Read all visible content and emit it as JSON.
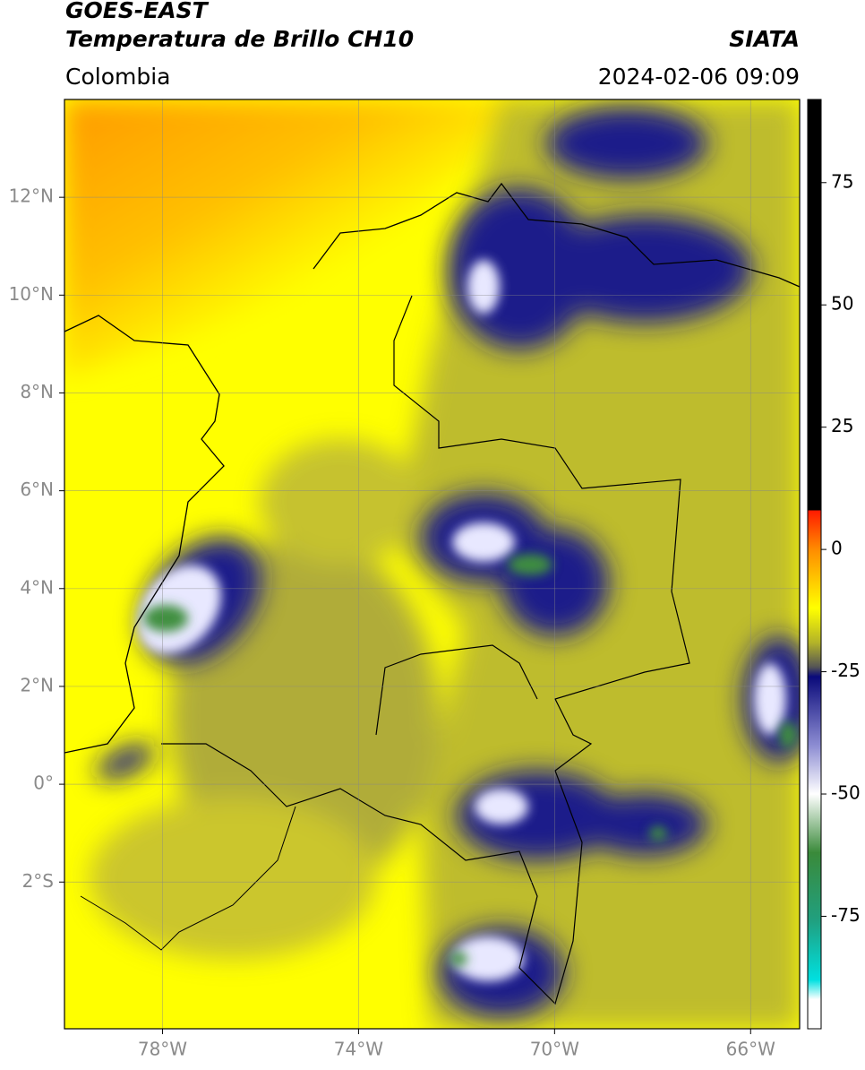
{
  "header": {
    "line1": "GOES-EAST",
    "title": "Temperatura de Brillo CH10",
    "source": "SIATA",
    "region": "Colombia",
    "datetime": "2024-02-06 09:09"
  },
  "map": {
    "xlim": [
      -80,
      -65
    ],
    "ylim": [
      -5,
      14
    ],
    "xticks": [
      {
        "value": -78,
        "label": "78°W"
      },
      {
        "value": -74,
        "label": "74°W"
      },
      {
        "value": -70,
        "label": "70°W"
      },
      {
        "value": -66,
        "label": "66°W"
      }
    ],
    "yticks": [
      {
        "value": 12,
        "label": "12°N"
      },
      {
        "value": 10,
        "label": "10°N"
      },
      {
        "value": 8,
        "label": "8°N"
      },
      {
        "value": 6,
        "label": "6°N"
      },
      {
        "value": 4,
        "label": "4°N"
      },
      {
        "value": 2,
        "label": "2°N"
      },
      {
        "value": 0,
        "label": "0°"
      },
      {
        "value": -2,
        "label": "2°S"
      }
    ],
    "grid": true
  },
  "colorbar": {
    "lim": [
      -98,
      92
    ],
    "ticks": [
      75,
      50,
      25,
      0,
      -25,
      -50,
      -75
    ],
    "stops": [
      {
        "value": 92,
        "color": "#000000"
      },
      {
        "value": 8,
        "color": "#000000"
      },
      {
        "value": 8,
        "color": "#ff1a00"
      },
      {
        "value": 0,
        "color": "#ff8c00"
      },
      {
        "value": -12,
        "color": "#ffff00"
      },
      {
        "value": -19,
        "color": "#b4b428"
      },
      {
        "value": -24,
        "color": "#555555"
      },
      {
        "value": -26,
        "color": "#0a0a7a"
      },
      {
        "value": -40,
        "color": "#8c8cd2"
      },
      {
        "value": -50,
        "color": "#ffffff"
      },
      {
        "value": -62,
        "color": "#3a8a3a"
      },
      {
        "value": -76,
        "color": "#20a080"
      },
      {
        "value": -88,
        "color": "#00e0e0"
      },
      {
        "value": -92,
        "color": "#ffffff"
      },
      {
        "value": -98,
        "color": "#ffffff"
      }
    ]
  }
}
